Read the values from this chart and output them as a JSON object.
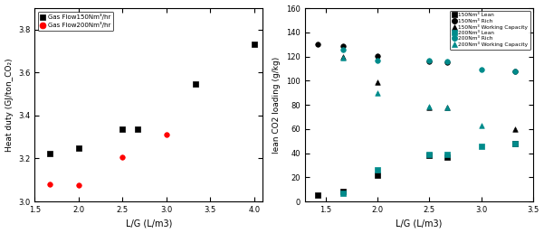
{
  "left_plot": {
    "black_series": {
      "label": "Gas Flow150Nm³/hr",
      "x": [
        1.67,
        2.0,
        2.5,
        2.67,
        3.33,
        4.0
      ],
      "y": [
        3.225,
        3.25,
        3.335,
        3.335,
        3.545,
        3.73
      ],
      "color": "black",
      "marker": "s"
    },
    "red_series": {
      "label": "Gas Flow200Nm³/hr",
      "x": [
        1.67,
        2.0,
        2.5,
        3.0
      ],
      "y": [
        3.08,
        3.075,
        3.205,
        3.31
      ],
      "color": "red",
      "marker": "o"
    },
    "xlabel": "L/G (L/m3)",
    "ylabel": "Heat duty (GJ/ton_CO₂)",
    "xlim": [
      1.5,
      4.1
    ],
    "ylim": [
      3.0,
      3.9
    ],
    "yticks": [
      3.0,
      3.2,
      3.4,
      3.6,
      3.8
    ],
    "xticks": [
      1.5,
      2.0,
      2.5,
      3.0,
      3.5,
      4.0
    ]
  },
  "right_plot": {
    "series": [
      {
        "label": "150Nm³ Lean",
        "x": [
          1.42,
          1.67,
          2.0,
          2.5,
          2.67,
          3.33
        ],
        "y": [
          5.0,
          8.0,
          22.0,
          38.0,
          37.0,
          48.0
        ],
        "color": "black",
        "marker": "s"
      },
      {
        "label": "150Nm³ Rich",
        "x": [
          1.42,
          1.67,
          2.0,
          2.5,
          2.67,
          3.33
        ],
        "y": [
          130.0,
          128.5,
          120.5,
          116.0,
          115.5,
          108.0
        ],
        "color": "black",
        "marker": "o"
      },
      {
        "label": "150Nm³ Working Capacity",
        "x": [
          1.67,
          2.0,
          2.5,
          2.67,
          3.33
        ],
        "y": [
          120.0,
          99.0,
          78.0,
          78.0,
          60.0
        ],
        "color": "black",
        "marker": "^"
      },
      {
        "label": "200Nm³ Lean",
        "x": [
          1.67,
          2.0,
          2.5,
          2.67,
          3.0,
          3.33
        ],
        "y": [
          7.0,
          26.0,
          39.0,
          39.0,
          46.0,
          48.0
        ],
        "color": "#008B8B",
        "marker": "s"
      },
      {
        "label": "200Nm³ Rich",
        "x": [
          1.67,
          2.0,
          2.5,
          2.67,
          3.0,
          3.33
        ],
        "y": [
          126.0,
          116.5,
          116.5,
          116.0,
          109.0,
          108.0
        ],
        "color": "#008B8B",
        "marker": "o"
      },
      {
        "label": "200Nm³ Working Capacity",
        "x": [
          1.67,
          2.0,
          2.5,
          2.67,
          3.0
        ],
        "y": [
          119.0,
          90.0,
          78.5,
          78.0,
          63.0
        ],
        "color": "#008B8B",
        "marker": "^"
      }
    ],
    "xlabel": "L/G (L/m3)",
    "ylabel": "lean CO2 loading (g/kg)",
    "xlim": [
      1.3,
      3.5
    ],
    "ylim": [
      0,
      160
    ],
    "yticks": [
      0,
      20,
      40,
      60,
      80,
      100,
      120,
      140,
      160
    ],
    "xticks": [
      1.5,
      2.0,
      2.5,
      3.0,
      3.5
    ]
  },
  "fig_width": 6.01,
  "fig_height": 2.58,
  "dpi": 100
}
